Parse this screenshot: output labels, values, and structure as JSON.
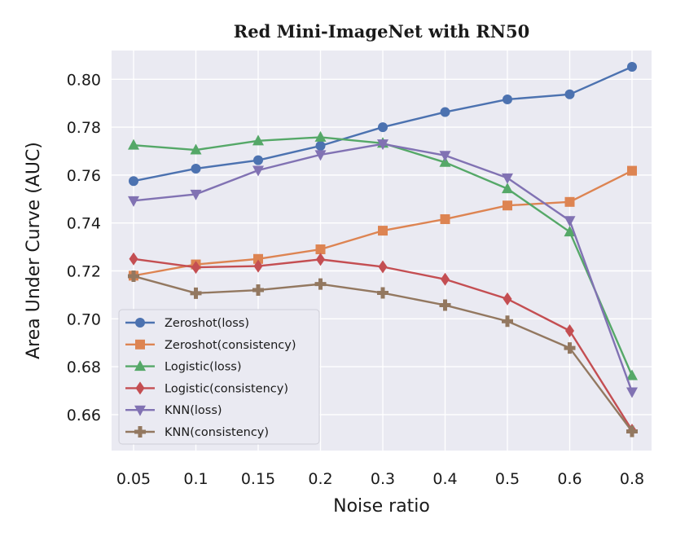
{
  "chart_data": {
    "type": "line",
    "title": "Red Mini-ImageNet with RN50",
    "xlabel": "Noise ratio",
    "ylabel": "Area Under Curve (AUC)",
    "categories": [
      "0.05",
      "0.1",
      "0.15",
      "0.2",
      "0.3",
      "0.4",
      "0.5",
      "0.6",
      "0.8"
    ],
    "ylim": [
      0.645,
      0.812
    ],
    "yticks": [
      "0.66",
      "0.68",
      "0.70",
      "0.72",
      "0.74",
      "0.76",
      "0.78",
      "0.80"
    ],
    "grid": true,
    "legend_position": "lower-left",
    "series": [
      {
        "name": "Zeroshot(loss)",
        "color": "#4c72b0",
        "marker": "circle",
        "values": [
          0.7575,
          0.7627,
          0.7662,
          0.7722,
          0.78,
          0.7863,
          0.7916,
          0.7937,
          0.8052
        ]
      },
      {
        "name": "Zeroshot(consistency)",
        "color": "#dd8452",
        "marker": "square",
        "values": [
          0.718,
          0.7227,
          0.725,
          0.729,
          0.7368,
          0.7416,
          0.7473,
          0.7488,
          0.7618
        ]
      },
      {
        "name": "Logistic(loss)",
        "color": "#55a868",
        "marker": "triangle-up",
        "values": [
          0.7725,
          0.7705,
          0.7743,
          0.7758,
          0.7733,
          0.7653,
          0.7543,
          0.7363,
          0.6763
        ]
      },
      {
        "name": "Logistic(consistency)",
        "color": "#c44e52",
        "marker": "diamond",
        "values": [
          0.725,
          0.7215,
          0.722,
          0.7248,
          0.7217,
          0.7165,
          0.7083,
          0.695,
          0.6535
        ]
      },
      {
        "name": "KNN(loss)",
        "color": "#8172b3",
        "marker": "triangle-down",
        "values": [
          0.7493,
          0.752,
          0.762,
          0.7685,
          0.773,
          0.7682,
          0.7588,
          0.741,
          0.6695
        ]
      },
      {
        "name": "KNN(consistency)",
        "color": "#937860",
        "marker": "plus",
        "values": [
          0.7178,
          0.7107,
          0.712,
          0.7145,
          0.7108,
          0.7057,
          0.699,
          0.6878,
          0.653
        ]
      }
    ]
  }
}
